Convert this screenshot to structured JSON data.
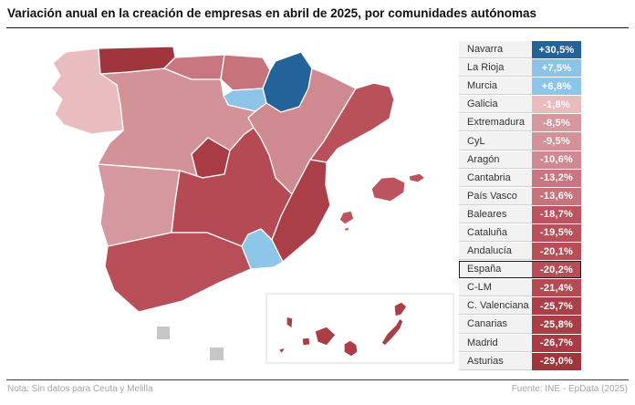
{
  "title": "Variación anual en la creación de empresas en abril de 2025, por comunidades autónomas",
  "footer": {
    "note": "Nota: Sin datos para Ceuta y Melilla",
    "source": "Fuente: INE - EpData (2025)"
  },
  "chart_data": {
    "type": "heatmap",
    "subtype": "choropleth-map-of-spain",
    "title": "Variación anual en la creación de empresas en abril de 2025, por comunidades autónomas",
    "unit": "%",
    "categories": [
      "Navarra",
      "La Rioja",
      "Murcia",
      "Galicia",
      "Extremadura",
      "CyL",
      "Aragón",
      "Cantabria",
      "País Vasco",
      "Baleares",
      "Cataluña",
      "Andalucía",
      "España",
      "C-LM",
      "C. Valenciana",
      "Canarias",
      "Madrid",
      "Asturias"
    ],
    "values": [
      30.5,
      7.5,
      6.8,
      -1.8,
      -8.5,
      -9.5,
      -10.6,
      -13.2,
      -13.6,
      -18.7,
      -19.5,
      -20.1,
      -20.2,
      -21.4,
      -25.7,
      -25.8,
      -26.7,
      -29.0
    ],
    "no_data": [
      "Ceuta",
      "Melilla"
    ],
    "legend_position": "right",
    "color_scale": "red-negative to blue-positive diverging"
  },
  "table": {
    "rows": [
      {
        "region": "Navarra",
        "value": "+30,5%",
        "color": "#24639a",
        "highlight": false
      },
      {
        "region": "La Rioja",
        "value": "+7,5%",
        "color": "#8ec3e8",
        "highlight": false
      },
      {
        "region": "Murcia",
        "value": "+6,8%",
        "color": "#8ec6ea",
        "highlight": false
      },
      {
        "region": "Galicia",
        "value": "-1,8%",
        "color": "#e9bcbf",
        "highlight": false
      },
      {
        "region": "Extremadura",
        "value": "-8,5%",
        "color": "#d5989e",
        "highlight": false
      },
      {
        "region": "CyL",
        "value": "-9,5%",
        "color": "#d29298",
        "highlight": false
      },
      {
        "region": "Aragón",
        "value": "-10,6%",
        "color": "#cf8990",
        "highlight": false
      },
      {
        "region": "Cantabria",
        "value": "-13,2%",
        "color": "#c8767f",
        "highlight": false
      },
      {
        "region": "País Vasco",
        "value": "-13,6%",
        "color": "#c6737c",
        "highlight": false
      },
      {
        "region": "Baleares",
        "value": "-18,7%",
        "color": "#bb545e",
        "highlight": false
      },
      {
        "region": "Cataluña",
        "value": "-19,5%",
        "color": "#b9515b",
        "highlight": false
      },
      {
        "region": "Andalucía",
        "value": "-20,1%",
        "color": "#b84e57",
        "highlight": false
      },
      {
        "region": "España",
        "value": "-20,2%",
        "color": "#b84d57",
        "highlight": true
      },
      {
        "region": "C-LM",
        "value": "-21,4%",
        "color": "#b44a53",
        "highlight": false
      },
      {
        "region": "C. Valenciana",
        "value": "-25,7%",
        "color": "#ab3f48",
        "highlight": false
      },
      {
        "region": "Canarias",
        "value": "-25,8%",
        "color": "#aa3e47",
        "highlight": false
      },
      {
        "region": "Madrid",
        "value": "-26,7%",
        "color": "#a83b44",
        "highlight": false
      },
      {
        "region": "Asturias",
        "value": "-29,0%",
        "color": "#a1353e",
        "highlight": false
      }
    ]
  },
  "map": {
    "no_data_color": "#c6c6c6",
    "regions": [
      {
        "id": "galicia",
        "name": "Galicia",
        "value": "-1,8%",
        "color": "#e9bcbf"
      },
      {
        "id": "asturias",
        "name": "Asturias",
        "value": "-29,0%",
        "color": "#a1353e"
      },
      {
        "id": "cantabria",
        "name": "Cantabria",
        "value": "-13,2%",
        "color": "#c8767f"
      },
      {
        "id": "paisvasco",
        "name": "País Vasco",
        "value": "-13,6%",
        "color": "#c6737c"
      },
      {
        "id": "navarra",
        "name": "Navarra",
        "value": "+30,5%",
        "color": "#24639a"
      },
      {
        "id": "larioja",
        "name": "La Rioja",
        "value": "+7,5%",
        "color": "#8ec3e8"
      },
      {
        "id": "aragon",
        "name": "Aragón",
        "value": "-10,6%",
        "color": "#cf8990"
      },
      {
        "id": "cataluna",
        "name": "Cataluña",
        "value": "-19,5%",
        "color": "#b9515b"
      },
      {
        "id": "cyl",
        "name": "Castilla y León",
        "value": "-9,5%",
        "color": "#d29298"
      },
      {
        "id": "madrid",
        "name": "Madrid",
        "value": "-26,7%",
        "color": "#a83b44"
      },
      {
        "id": "clm",
        "name": "Castilla-La Mancha",
        "value": "-21,4%",
        "color": "#b44a53"
      },
      {
        "id": "extremadura",
        "name": "Extremadura",
        "value": "-8,5%",
        "color": "#d5989e"
      },
      {
        "id": "valenciana",
        "name": "C. Valenciana",
        "value": "-25,7%",
        "color": "#ab3f48"
      },
      {
        "id": "murcia",
        "name": "Murcia",
        "value": "+6,8%",
        "color": "#8ec6ea"
      },
      {
        "id": "andalucia",
        "name": "Andalucía",
        "value": "-20,1%",
        "color": "#b84e57"
      },
      {
        "id": "baleares",
        "name": "Baleares",
        "value": "-18,7%",
        "color": "#bb545e"
      },
      {
        "id": "canarias",
        "name": "Canarias",
        "value": "-25,8%",
        "color": "#aa3e47"
      }
    ]
  }
}
